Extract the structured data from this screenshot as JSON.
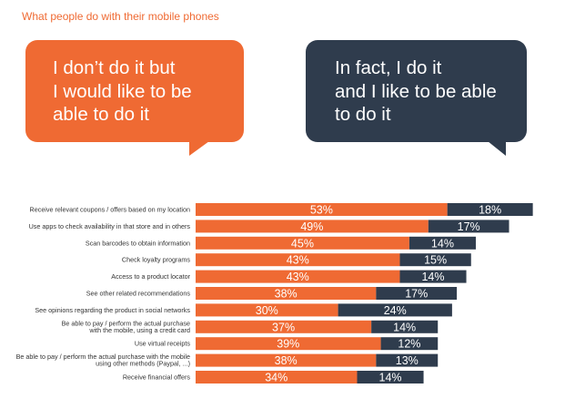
{
  "page": {
    "title": "What people do with their mobile phones"
  },
  "bubbles": {
    "left": {
      "lines": [
        "I don’t do it but",
        "I would like to be",
        "able to do it"
      ],
      "color": "#ef6a33"
    },
    "right": {
      "lines": [
        "In fact, I do it",
        "and I like to be able",
        "to do it"
      ],
      "color": "#2f3c4d"
    }
  },
  "chart_data": {
    "type": "bar",
    "orientation": "horizontal",
    "stacked": true,
    "categories": [
      [
        "Receive relevant coupons / offers based on my location"
      ],
      [
        "Use apps to check availability in that store and in others"
      ],
      [
        "Scan barcodes to obtain information"
      ],
      [
        "Check loyalty programs"
      ],
      [
        "Access to a product locator"
      ],
      [
        "See other related recommendations"
      ],
      [
        "See opinions regarding the product in social networks"
      ],
      [
        "Be able to pay / perform the actual purchase",
        "with the mobile, using a credit card"
      ],
      [
        "Use virtual receipts"
      ],
      [
        "Be able to pay / perform the actual purchase with the mobile",
        "using other methods (Paypal, ...)"
      ],
      [
        "Receive financial offers"
      ]
    ],
    "series": [
      {
        "name": "I don’t do it but I would like to be able to do it",
        "color": "#ef6a33",
        "values": [
          53,
          49,
          45,
          43,
          43,
          38,
          30,
          37,
          39,
          38,
          34
        ],
        "labels": [
          "53%",
          "49%",
          "45%",
          "43%",
          "43%",
          "38%",
          "30%",
          "37%",
          "39%",
          "38%",
          "34%"
        ]
      },
      {
        "name": "In fact, I do it and I like to be able to do it",
        "color": "#2f3c4d",
        "values": [
          18,
          17,
          14,
          15,
          14,
          17,
          24,
          14,
          12,
          13,
          14
        ],
        "labels": [
          "18%",
          "17%",
          "14%",
          "15%",
          "14%",
          "17%",
          "24%",
          "14%",
          "12%",
          "13%",
          "14%"
        ]
      }
    ],
    "title": "",
    "xlabel": "",
    "ylabel": ""
  }
}
